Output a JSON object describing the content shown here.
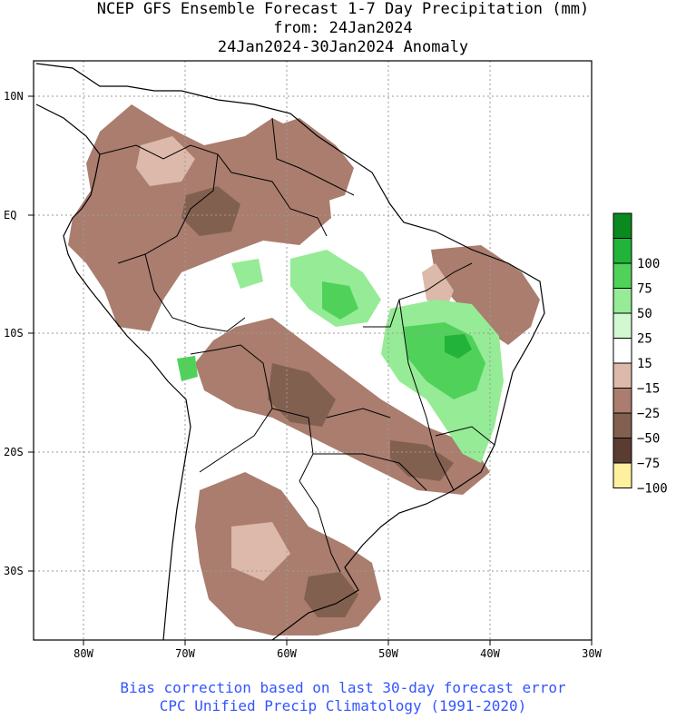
{
  "header": {
    "title": "NCEP GFS Ensemble Forecast 1-7 Day Precipitation (mm)",
    "from": "from: 24Jan2024",
    "period": "24Jan2024-30Jan2024 Anomaly"
  },
  "map": {
    "lat_labels": [
      "10N",
      "EQ",
      "10S",
      "20S",
      "30S"
    ],
    "lon_labels": [
      "80W",
      "70W",
      "60W",
      "50W",
      "40W",
      "30W"
    ]
  },
  "legend": {
    "items": [
      {
        "label": "",
        "color": "#0a8a1e"
      },
      {
        "label": "100",
        "color": "#22b43a"
      },
      {
        "label": "75",
        "color": "#50d25a"
      },
      {
        "label": "50",
        "color": "#96eb96"
      },
      {
        "label": "25",
        "color": "#d2f8d2"
      },
      {
        "label": "15",
        "color": "#ffffff"
      },
      {
        "label": "−15",
        "color": "#dcb9aa"
      },
      {
        "label": "−25",
        "color": "#aa7d6e"
      },
      {
        "label": "−50",
        "color": "#826050"
      },
      {
        "label": "−75",
        "color": "#5a3c32"
      },
      {
        "label": "−100",
        "color": "#fff0a0"
      }
    ]
  },
  "footer": {
    "line1": "Bias correction based on last 30-day forecast error",
    "line2": "CPC Unified Precip Climatology (1991-2020)"
  }
}
